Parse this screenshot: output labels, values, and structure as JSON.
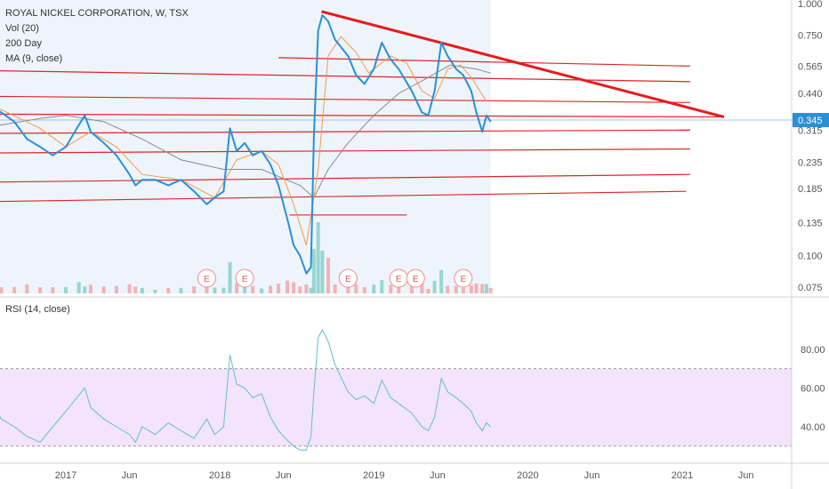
{
  "legend": {
    "symbol": "ROYAL NICKEL CORPORATION, W, TSX",
    "volume": "Vol (20)",
    "ma200": "200 Day",
    "ma9": "MA (9, close)",
    "rsi": "RSI (14, close)"
  },
  "colors": {
    "price": "#2a8fd6",
    "ma9": "#f39a4a",
    "ma200": "#8a8a8a",
    "trend": "#e02424",
    "trendThick": "#e41c1c",
    "rsi": "#5fc0cf",
    "rsiBand": "#f3e3fb",
    "futureArea": "#eef4fb",
    "volUp": "#7fd0c6",
    "volDown": "#f2a3a3",
    "priceBadge": "#2a8fd6"
  },
  "chart_data": [
    {
      "type": "line",
      "title": "ROYAL NICKEL CORPORATION, W, TSX",
      "y_scale": "log",
      "y_ticks": [
        "1.000",
        "0.750",
        "0.565",
        "0.440",
        "0.345",
        "0.315",
        "0.235",
        "0.185",
        "0.135",
        "0.100",
        "0.075"
      ],
      "last_price": "0.345",
      "x_ticks": [
        "2017",
        "Jun",
        "2018",
        "Jun",
        "2019",
        "Jun",
        "2020",
        "Jun",
        "2021",
        "Jun"
      ],
      "earnings_markers": [
        "E",
        "E",
        "E",
        "E",
        "E",
        "E"
      ],
      "series": [
        {
          "name": "MA (9, close)",
          "role": "ma9"
        },
        {
          "name": "200 Day",
          "role": "ma200"
        }
      ],
      "price_points": [
        [
          "2016-05-01",
          0.38
        ],
        [
          "2016-06-01",
          0.36
        ],
        [
          "2016-07-01",
          0.4
        ],
        [
          "2016-08-01",
          0.37
        ],
        [
          "2016-09-01",
          0.34
        ],
        [
          "2016-10-01",
          0.29
        ],
        [
          "2016-11-01",
          0.27
        ],
        [
          "2016-12-01",
          0.25
        ],
        [
          "2017-01-01",
          0.27
        ],
        [
          "2017-02-01",
          0.33
        ],
        [
          "2017-02-15",
          0.36
        ],
        [
          "2017-03-01",
          0.31
        ],
        [
          "2017-04-01",
          0.28
        ],
        [
          "2017-05-01",
          0.25
        ],
        [
          "2017-06-01",
          0.21
        ],
        [
          "2017-06-15",
          0.19
        ],
        [
          "2017-07-01",
          0.2
        ],
        [
          "2017-08-01",
          0.2
        ],
        [
          "2017-09-01",
          0.19
        ],
        [
          "2017-10-01",
          0.2
        ],
        [
          "2017-11-01",
          0.18
        ],
        [
          "2017-12-01",
          0.16
        ],
        [
          "2017-12-20",
          0.17
        ],
        [
          "2018-01-10",
          0.18
        ],
        [
          "2018-01-25",
          0.32
        ],
        [
          "2018-02-10",
          0.26
        ],
        [
          "2018-03-01",
          0.28
        ],
        [
          "2018-03-20",
          0.25
        ],
        [
          "2018-04-10",
          0.26
        ],
        [
          "2018-05-01",
          0.23
        ],
        [
          "2018-05-20",
          0.19
        ],
        [
          "2018-06-10",
          0.14
        ],
        [
          "2018-06-25",
          0.11
        ],
        [
          "2018-07-10",
          0.1
        ],
        [
          "2018-07-25",
          0.085
        ],
        [
          "2018-08-05",
          0.09
        ],
        [
          "2018-08-12",
          0.3
        ],
        [
          "2018-08-22",
          0.78
        ],
        [
          "2018-09-01",
          0.9
        ],
        [
          "2018-09-15",
          0.85
        ],
        [
          "2018-10-01",
          0.72
        ],
        [
          "2018-11-01",
          0.62
        ],
        [
          "2018-11-20",
          0.52
        ],
        [
          "2018-12-10",
          0.48
        ],
        [
          "2019-01-01",
          0.55
        ],
        [
          "2019-01-20",
          0.7
        ],
        [
          "2019-02-10",
          0.6
        ],
        [
          "2019-03-01",
          0.55
        ],
        [
          "2019-04-01",
          0.45
        ],
        [
          "2019-04-25",
          0.37
        ],
        [
          "2019-05-10",
          0.36
        ],
        [
          "2019-05-25",
          0.45
        ],
        [
          "2019-06-10",
          0.7
        ],
        [
          "2019-06-25",
          0.62
        ],
        [
          "2019-07-15",
          0.55
        ],
        [
          "2019-08-01",
          0.52
        ],
        [
          "2019-08-20",
          0.45
        ],
        [
          "2019-09-01",
          0.37
        ],
        [
          "2019-09-15",
          0.31
        ],
        [
          "2019-09-25",
          0.36
        ],
        [
          "2019-10-05",
          0.34
        ]
      ],
      "ma9_points": [
        [
          "2016-05-01",
          0.39
        ],
        [
          "2016-08-01",
          0.38
        ],
        [
          "2016-11-01",
          0.32
        ],
        [
          "2017-01-01",
          0.27
        ],
        [
          "2017-03-01",
          0.31
        ],
        [
          "2017-05-01",
          0.27
        ],
        [
          "2017-07-01",
          0.21
        ],
        [
          "2017-10-01",
          0.2
        ],
        [
          "2017-12-20",
          0.17
        ],
        [
          "2018-02-10",
          0.24
        ],
        [
          "2018-04-10",
          0.26
        ],
        [
          "2018-05-20",
          0.23
        ],
        [
          "2018-06-25",
          0.16
        ],
        [
          "2018-07-25",
          0.11
        ],
        [
          "2018-08-22",
          0.22
        ],
        [
          "2018-09-15",
          0.62
        ],
        [
          "2018-10-15",
          0.74
        ],
        [
          "2018-11-20",
          0.64
        ],
        [
          "2018-12-20",
          0.53
        ],
        [
          "2019-02-10",
          0.62
        ],
        [
          "2019-03-20",
          0.58
        ],
        [
          "2019-04-25",
          0.45
        ],
        [
          "2019-05-25",
          0.42
        ],
        [
          "2019-06-25",
          0.55
        ],
        [
          "2019-07-25",
          0.57
        ],
        [
          "2019-08-20",
          0.51
        ],
        [
          "2019-09-25",
          0.41
        ]
      ],
      "ma200_points": [
        [
          "2016-05-01",
          0.3
        ],
        [
          "2016-08-01",
          0.33
        ],
        [
          "2016-11-01",
          0.35
        ],
        [
          "2017-01-01",
          0.36
        ],
        [
          "2017-04-01",
          0.34
        ],
        [
          "2017-07-01",
          0.29
        ],
        [
          "2017-10-01",
          0.24
        ],
        [
          "2018-01-10",
          0.22
        ],
        [
          "2018-04-10",
          0.22
        ],
        [
          "2018-07-10",
          0.19
        ],
        [
          "2018-08-12",
          0.17
        ],
        [
          "2018-09-15",
          0.22
        ],
        [
          "2018-11-01",
          0.28
        ],
        [
          "2019-01-01",
          0.36
        ],
        [
          "2019-03-01",
          0.44
        ],
        [
          "2019-05-01",
          0.5
        ],
        [
          "2019-07-01",
          0.57
        ],
        [
          "2019-09-01",
          0.55
        ],
        [
          "2019-10-05",
          0.53
        ]
      ],
      "trend_lines": [
        [
          "2018-08-30",
          0.93,
          "2021-04-10",
          0.355
        ],
        [
          "2016-04-01",
          0.545,
          "2021-01-20",
          0.49
        ],
        [
          "2018-05-20",
          0.61,
          "2021-01-20",
          0.565
        ],
        [
          "2016-04-01",
          0.43,
          "2021-01-20",
          0.405
        ],
        [
          "2016-04-01",
          0.365,
          "2021-04-10",
          0.355
        ],
        [
          "2016-04-01",
          0.305,
          "2021-01-20",
          0.315
        ],
        [
          "2016-04-01",
          0.255,
          "2021-01-20",
          0.265
        ],
        [
          "2016-04-01",
          0.195,
          "2021-01-20",
          0.21
        ],
        [
          "2016-04-01",
          0.163,
          "2021-01-10",
          0.18
        ],
        [
          "2018-06-15",
          0.145,
          "2019-03-20",
          0.145
        ]
      ]
    },
    {
      "type": "line",
      "title": "RSI (14, close)",
      "y_ticks": [
        "80.00",
        "60.00",
        "40.00"
      ],
      "overbought": 70,
      "oversold": 30,
      "values": [
        [
          "2016-05-01",
          48
        ],
        [
          "2016-06-01",
          40
        ],
        [
          "2016-07-01",
          58
        ],
        [
          "2016-08-01",
          44
        ],
        [
          "2016-09-01",
          40
        ],
        [
          "2016-10-01",
          35
        ],
        [
          "2016-11-01",
          32
        ],
        [
          "2016-12-01",
          40
        ],
        [
          "2017-01-01",
          48
        ],
        [
          "2017-02-15",
          60
        ],
        [
          "2017-03-01",
          50
        ],
        [
          "2017-04-01",
          44
        ],
        [
          "2017-05-01",
          40
        ],
        [
          "2017-06-01",
          36
        ],
        [
          "2017-06-15",
          32
        ],
        [
          "2017-07-01",
          40
        ],
        [
          "2017-08-01",
          36
        ],
        [
          "2017-09-01",
          42
        ],
        [
          "2017-10-01",
          38
        ],
        [
          "2017-11-01",
          34
        ],
        [
          "2017-12-01",
          44
        ],
        [
          "2017-12-20",
          36
        ],
        [
          "2018-01-10",
          40
        ],
        [
          "2018-01-25",
          77
        ],
        [
          "2018-02-10",
          62
        ],
        [
          "2018-03-01",
          60
        ],
        [
          "2018-03-20",
          55
        ],
        [
          "2018-04-10",
          57
        ],
        [
          "2018-05-01",
          45
        ],
        [
          "2018-05-20",
          38
        ],
        [
          "2018-06-10",
          33
        ],
        [
          "2018-06-25",
          30
        ],
        [
          "2018-07-10",
          28
        ],
        [
          "2018-07-25",
          28
        ],
        [
          "2018-08-05",
          35
        ],
        [
          "2018-08-12",
          58
        ],
        [
          "2018-08-22",
          86
        ],
        [
          "2018-09-01",
          90
        ],
        [
          "2018-09-15",
          84
        ],
        [
          "2018-10-01",
          72
        ],
        [
          "2018-11-01",
          58
        ],
        [
          "2018-11-20",
          54
        ],
        [
          "2018-12-10",
          56
        ],
        [
          "2019-01-01",
          52
        ],
        [
          "2019-01-20",
          64
        ],
        [
          "2019-02-10",
          55
        ],
        [
          "2019-03-01",
          52
        ],
        [
          "2019-04-01",
          47
        ],
        [
          "2019-04-25",
          40
        ],
        [
          "2019-05-10",
          38
        ],
        [
          "2019-05-25",
          45
        ],
        [
          "2019-06-10",
          65
        ],
        [
          "2019-06-25",
          58
        ],
        [
          "2019-07-15",
          55
        ],
        [
          "2019-08-01",
          52
        ],
        [
          "2019-08-20",
          48
        ],
        [
          "2019-09-01",
          42
        ],
        [
          "2019-09-15",
          38
        ],
        [
          "2019-09-25",
          42
        ],
        [
          "2019-10-05",
          40
        ]
      ]
    }
  ]
}
